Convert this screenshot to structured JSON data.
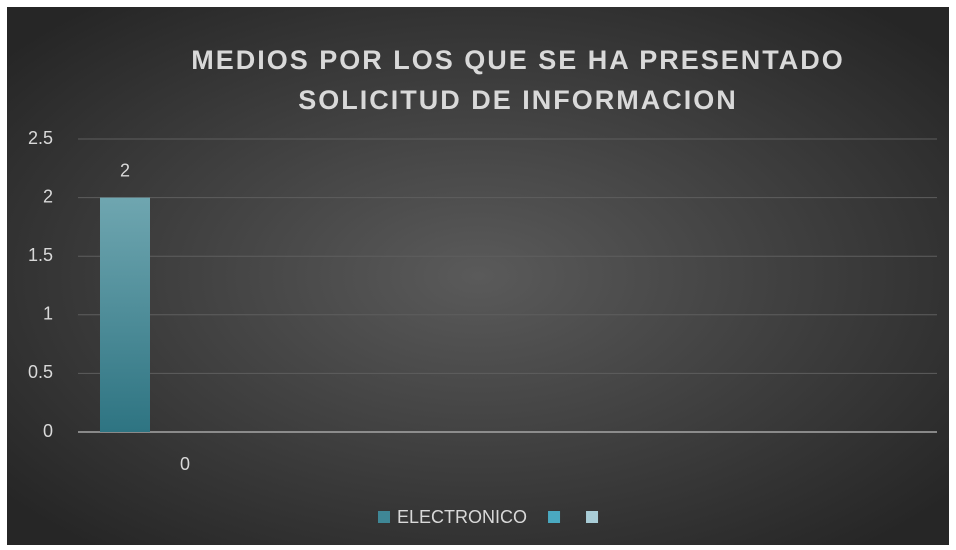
{
  "chart_data": {
    "type": "bar",
    "title": [
      "MEDIOS POR LOS QUE SE HA PRESENTADO",
      "SOLICITUD DE INFORMACION"
    ],
    "categories": [
      null
    ],
    "series": [
      {
        "name": "ELECTRONICO",
        "color": "#3f8796",
        "values": [
          2
        ]
      },
      {
        "name": null,
        "color": "#4aa9c1",
        "values": [
          0
        ]
      },
      {
        "name": null,
        "color": "#a9cdd7",
        "values": [
          null
        ]
      }
    ],
    "ylim": [
      0,
      2.5
    ],
    "yticks": [
      0,
      0.5,
      1,
      1.5,
      2,
      2.5
    ],
    "grid": true,
    "legend": "bottom"
  }
}
